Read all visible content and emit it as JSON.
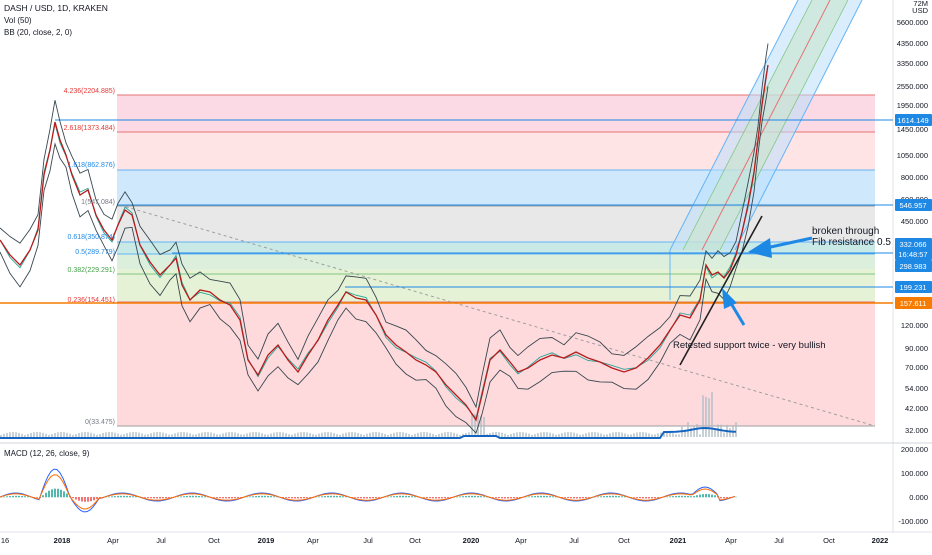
{
  "header": {
    "title": "DASH / USD, 1D, KRAKEN",
    "vol_label": "Vol (50)",
    "bb_label": "BB (20, close, 2, 0)"
  },
  "macd": {
    "label": "MACD (12, 26, close, 9)",
    "ticks": [
      "200.000",
      "100.000",
      "0.000",
      "-100.000"
    ]
  },
  "price_axis": {
    "unit": "USD",
    "top_label": "72M",
    "ticks": [
      "5600.000",
      "4350.000",
      "3350.000",
      "2550.000",
      "1950.000",
      "1450.000",
      "1050.000",
      "800.000",
      "600.000",
      "450.000",
      "120.000",
      "90.000",
      "70.000",
      "54.000",
      "42.000",
      "32.000"
    ],
    "tags": [
      {
        "text": "1614.149",
        "color": "#1e88e5"
      },
      {
        "text": "546.957",
        "color": "#1e88e5"
      },
      {
        "text": "332.066",
        "color": "#1e88e5"
      },
      {
        "text": "16:48:57",
        "color": "#1e88e5"
      },
      {
        "text": "298.983",
        "color": "#1e88e5"
      },
      {
        "text": "199.231",
        "color": "#1e88e5"
      },
      {
        "text": "157.611",
        "color": "#f57c00"
      }
    ]
  },
  "time_axis": [
    "16",
    "2018",
    "Apr",
    "Jul",
    "Oct",
    "2019",
    "Apr",
    "Jul",
    "Oct",
    "2020",
    "Apr",
    "Jul",
    "Oct",
    "2021",
    "Apr",
    "Jul",
    "Oct",
    "2022"
  ],
  "fib_levels": [
    {
      "label": "4.236(2204.885)",
      "color": "#e53935"
    },
    {
      "label": "2.618(1373.484)",
      "color": "#e53935"
    },
    {
      "label": "1.618(862.876)",
      "color": "#1e88e5"
    },
    {
      "label": "1(547.084)",
      "color": "#787b86"
    },
    {
      "label": "0.618(350.874)",
      "color": "#1e88e5"
    },
    {
      "label": "0.5(289.779)",
      "color": "#1e88e5"
    },
    {
      "label": "0.382(229.291)",
      "color": "#43a047"
    },
    {
      "label": "0.236(154.451)",
      "color": "#e53935"
    },
    {
      "label": "0(33.475)",
      "color": "#787b86"
    }
  ],
  "annotations": {
    "breakout": "broken through\nFib resistance 0.5",
    "support": "Retested support twice - very bullish"
  },
  "colors": {
    "price": "#b71c1c",
    "bb": "#26a69a",
    "volume_line": "#1565c0",
    "arrow": "#1e88e5",
    "macd": "#2962ff",
    "signal": "#ff6d00",
    "hist_up": "#26a69a",
    "hist_down": "#ef5350"
  }
}
